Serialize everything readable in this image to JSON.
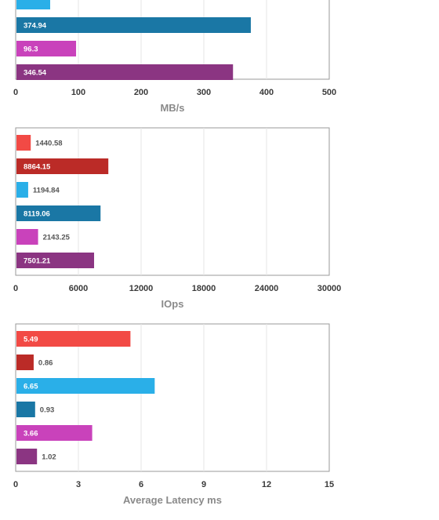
{
  "chart_data": [
    {
      "type": "bar",
      "orientation": "horizontal",
      "xlabel": "MB/s",
      "xlim": [
        0,
        500
      ],
      "xticks": [
        "0",
        "100",
        "200",
        "300",
        "400",
        "500"
      ],
      "grid": true,
      "bars": [
        {
          "value": 55,
          "label": "",
          "color": "#2aafe8"
        },
        {
          "value": 374.94,
          "label": "374.94",
          "color": "#1a77a5"
        },
        {
          "value": 96.3,
          "label": "96.3",
          "color": "#c942bb"
        },
        {
          "value": 346.54,
          "label": "346.54",
          "color": "#8b3582"
        }
      ]
    },
    {
      "type": "bar",
      "orientation": "horizontal",
      "xlabel": "IOps",
      "xlim": [
        0,
        30000
      ],
      "xticks": [
        "0",
        "6000",
        "12000",
        "18000",
        "24000",
        "30000"
      ],
      "grid": true,
      "bars": [
        {
          "value": 1440.58,
          "label": "1440.58",
          "color": "#f24a45"
        },
        {
          "value": 8864.15,
          "label": "8864.15",
          "color": "#bb2b27"
        },
        {
          "value": 1194.84,
          "label": "1194.84",
          "color": "#2aafe8"
        },
        {
          "value": 8119.06,
          "label": "8119.06",
          "color": "#1a77a5"
        },
        {
          "value": 2143.25,
          "label": "2143.25",
          "color": "#c942bb"
        },
        {
          "value": 7501.21,
          "label": "7501.21",
          "color": "#8b3582"
        }
      ]
    },
    {
      "type": "bar",
      "orientation": "horizontal",
      "xlabel": "Average Latency ms",
      "xlim": [
        0,
        15
      ],
      "xticks": [
        "0",
        "3",
        "6",
        "9",
        "12",
        "15"
      ],
      "grid": true,
      "bars": [
        {
          "value": 5.49,
          "label": "5.49",
          "color": "#f24a45"
        },
        {
          "value": 0.86,
          "label": "0.86",
          "color": "#bb2b27"
        },
        {
          "value": 6.65,
          "label": "6.65",
          "color": "#2aafe8"
        },
        {
          "value": 0.93,
          "label": "0.93",
          "color": "#1a77a5"
        },
        {
          "value": 3.66,
          "label": "3.66",
          "color": "#c942bb"
        },
        {
          "value": 1.02,
          "label": "1.02",
          "color": "#8b3582"
        }
      ]
    }
  ]
}
